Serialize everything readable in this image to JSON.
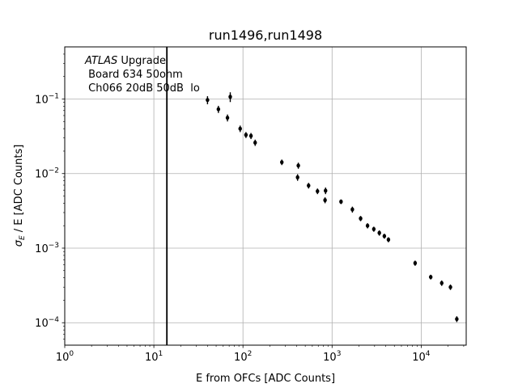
{
  "chart_data": {
    "type": "scatter",
    "title": "run1496,run1498",
    "xlabel": "E from OFCs [ADC Counts]",
    "ylabel_symbol": "σ",
    "ylabel_sub": "E",
    "ylabel_rest": " / E [ADC Counts]",
    "xscale": "log",
    "yscale": "log",
    "xlim": [
      1,
      32000
    ],
    "ylim": [
      5e-05,
      0.5
    ],
    "grid": true,
    "x_ticks": [
      {
        "value": 1,
        "base": "10",
        "exp": "0"
      },
      {
        "value": 10,
        "base": "10",
        "exp": "1"
      },
      {
        "value": 100,
        "base": "10",
        "exp": "2"
      },
      {
        "value": 1000,
        "base": "10",
        "exp": "3"
      },
      {
        "value": 10000,
        "base": "10",
        "exp": "4"
      }
    ],
    "y_ticks": [
      {
        "value": 0.0001,
        "base": "10",
        "exp": "−4"
      },
      {
        "value": 0.001,
        "base": "10",
        "exp": "−3"
      },
      {
        "value": 0.01,
        "base": "10",
        "exp": "−2"
      },
      {
        "value": 0.1,
        "base": "10",
        "exp": "−1"
      }
    ],
    "annotation": {
      "italic": "ATLAS",
      "rest": " Upgrade",
      "line2": " Board 634 50ohm",
      "line3": " Ch066 20dB 50dB  lo"
    },
    "vline_x": 14,
    "marker_color": "#000000",
    "points": [
      {
        "x": 40,
        "y": 0.097,
        "err": 0.012
      },
      {
        "x": 53,
        "y": 0.073,
        "err": 0.008
      },
      {
        "x": 67,
        "y": 0.056,
        "err": 0.006
      },
      {
        "x": 72,
        "y": 0.107,
        "err": 0.016
      },
      {
        "x": 93,
        "y": 0.04,
        "err": 0.004
      },
      {
        "x": 108,
        "y": 0.033,
        "err": 0.003
      },
      {
        "x": 123,
        "y": 0.032,
        "err": 0.003
      },
      {
        "x": 137,
        "y": 0.026,
        "err": 0.0025
      },
      {
        "x": 273,
        "y": 0.0142,
        "err": 0.0012
      },
      {
        "x": 410,
        "y": 0.0089,
        "err": 0.0009
      },
      {
        "x": 418,
        "y": 0.0128,
        "err": 0.0012
      },
      {
        "x": 545,
        "y": 0.0069,
        "err": 0.0006
      },
      {
        "x": 686,
        "y": 0.0058,
        "err": 0.0005
      },
      {
        "x": 834,
        "y": 0.0044,
        "err": 0.0004
      },
      {
        "x": 845,
        "y": 0.0059,
        "err": 0.0006
      },
      {
        "x": 1260,
        "y": 0.0042,
        "err": 0.0003
      },
      {
        "x": 1690,
        "y": 0.0033,
        "err": 0.0003
      },
      {
        "x": 2090,
        "y": 0.0025,
        "err": 0.0002
      },
      {
        "x": 2500,
        "y": 0.002,
        "err": 0.00016
      },
      {
        "x": 2940,
        "y": 0.0018,
        "err": 0.00014
      },
      {
        "x": 3390,
        "y": 0.0016,
        "err": 0.00013
      },
      {
        "x": 3860,
        "y": 0.00145,
        "err": 0.00011
      },
      {
        "x": 4290,
        "y": 0.0013,
        "err": 0.0001
      },
      {
        "x": 8550,
        "y": 0.00063,
        "err": 5e-05
      },
      {
        "x": 12800,
        "y": 0.00041,
        "err": 3e-05
      },
      {
        "x": 17000,
        "y": 0.00034,
        "err": 2.8e-05
      },
      {
        "x": 21300,
        "y": 0.0003,
        "err": 2.5e-05
      },
      {
        "x": 25100,
        "y": 0.000112,
        "err": 1e-05
      }
    ]
  }
}
